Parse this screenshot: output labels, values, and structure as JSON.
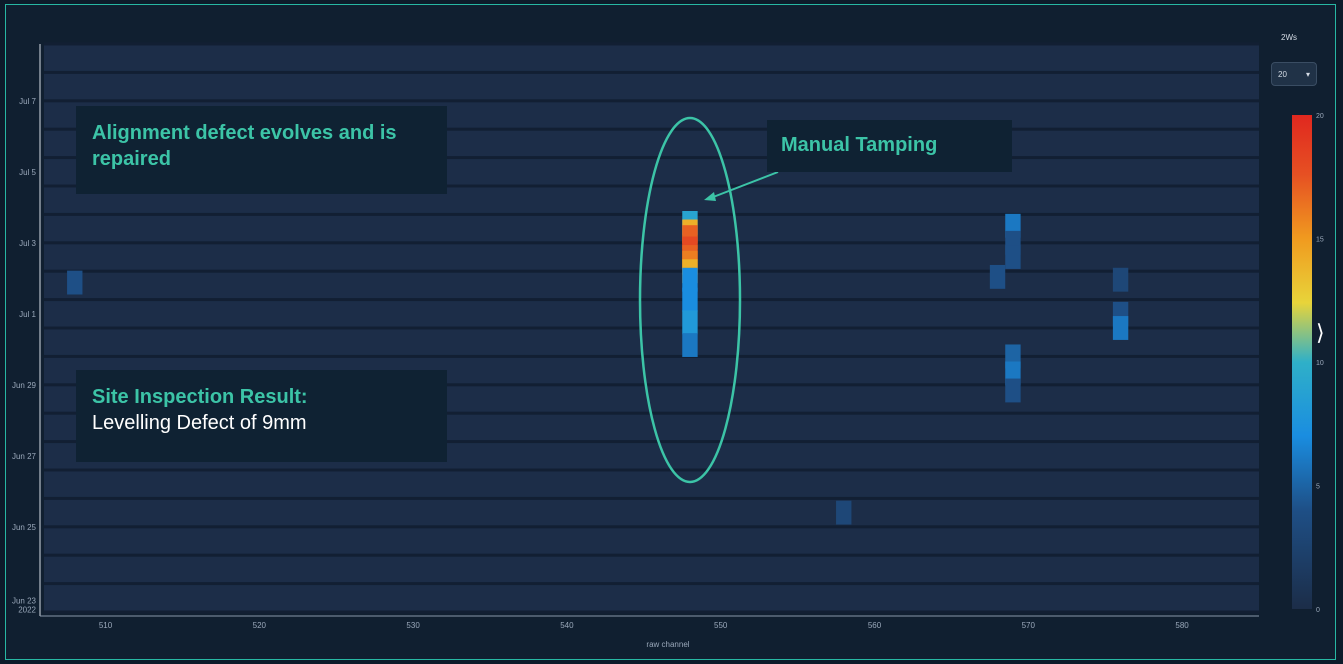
{
  "chart_data": {
    "type": "heatmap",
    "xlabel": "raw channel",
    "xlim": [
      506,
      585
    ],
    "x_ticks": [
      "510",
      "520",
      "530",
      "540",
      "550",
      "560",
      "570",
      "580"
    ],
    "y_ticks": [
      "Jul 7",
      "Jul 5",
      "Jul 3",
      "Jul 1",
      "Jun 29",
      "Jun 27",
      "Jun 25",
      "Jun 23\n2022"
    ],
    "colorbar": {
      "label": "2Ws",
      "min": 0,
      "max": 20,
      "ticks": [
        "20",
        "15",
        "10",
        "5",
        "0"
      ]
    },
    "hot_cells": [
      {
        "row": 6.3,
        "channel": 548,
        "value": 9
      },
      {
        "row": 6.6,
        "channel": 548,
        "value": 14
      },
      {
        "row": 6.8,
        "channel": 548,
        "value": 17
      },
      {
        "row": 7.2,
        "channel": 548,
        "value": 18
      },
      {
        "row": 7.5,
        "channel": 548,
        "value": 17
      },
      {
        "row": 7.7,
        "channel": 548,
        "value": 16
      },
      {
        "row": 8.0,
        "channel": 548,
        "value": 14
      },
      {
        "row": 8.3,
        "channel": 548,
        "value": 7
      },
      {
        "row": 9.0,
        "channel": 548,
        "value": 7
      },
      {
        "row": 9.8,
        "channel": 548,
        "value": 8
      },
      {
        "row": 10.6,
        "channel": 548,
        "value": 6
      },
      {
        "row": 6.4,
        "channel": 569,
        "value": 6
      },
      {
        "row": 7.0,
        "channel": 569,
        "value": 4
      },
      {
        "row": 7.5,
        "channel": 569,
        "value": 4
      },
      {
        "row": 11.0,
        "channel": 569,
        "value": 5
      },
      {
        "row": 11.6,
        "channel": 569,
        "value": 6
      },
      {
        "row": 12.2,
        "channel": 569,
        "value": 4
      },
      {
        "row": 8.2,
        "channel": 568,
        "value": 4
      },
      {
        "row": 9.5,
        "channel": 576,
        "value": 4
      },
      {
        "row": 10.0,
        "channel": 576,
        "value": 6
      },
      {
        "row": 8.3,
        "channel": 576,
        "value": 3
      },
      {
        "row": 8.4,
        "channel": 508,
        "value": 4
      },
      {
        "row": 16.5,
        "channel": 558,
        "value": 3
      }
    ]
  },
  "controls": {
    "colorbar_label": "2Ws",
    "dropdown_value": "20"
  },
  "annotations": {
    "alignment": "Alignment defect evolves and is repaired",
    "manual": "Manual Tamping",
    "site_title": "Site Inspection Result:",
    "site_body": "Levelling Defect of 9mm"
  },
  "colors": {
    "background": "#101f30",
    "plot_bg": "#1c2d48",
    "accent": "#3cc4a7",
    "annot_text": "#3cc4a7"
  }
}
